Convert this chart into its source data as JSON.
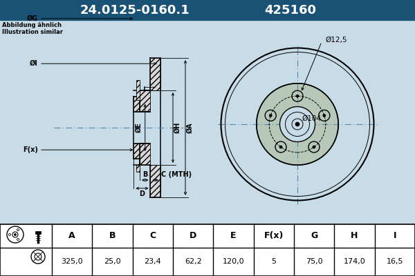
{
  "title_part": "24.0125-0160.1",
  "title_code": "425160",
  "title_bg": "#1a5276",
  "title_fg": "#ffffff",
  "note_line1": "Abbildung ähnlich",
  "note_line2": "Illustration similar",
  "header_cols": [
    "A",
    "B",
    "C",
    "D",
    "E",
    "F(x)",
    "G",
    "H",
    "I"
  ],
  "value_row": [
    "325,0",
    "25,0",
    "23,4",
    "62,2",
    "120,0",
    "5",
    "75,0",
    "174,0",
    "16,5"
  ],
  "front_annot_outer": "Ø12,5",
  "front_annot_inner": "Ø104",
  "bg_color": "#c8dce8",
  "table_bg": "#ffffff",
  "line_color": "#000000"
}
